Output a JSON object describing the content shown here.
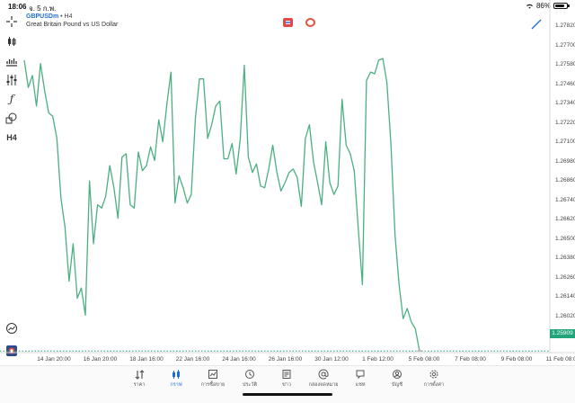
{
  "status_bar": {
    "time": "18:06",
    "date": "จ. 5 ก.พ.",
    "battery": "86%",
    "battery_level": 0.86
  },
  "header": {
    "symbol": "GBPUSDm",
    "timeframe": "H4",
    "description": "Great Britain Pound vs US Dollar"
  },
  "toolbar": {
    "items": [
      {
        "name": "crosshair-icon"
      },
      {
        "name": "candlestick-icon"
      },
      {
        "name": "indicators-icon"
      },
      {
        "name": "settings-sliders-icon"
      },
      {
        "name": "function-icon"
      },
      {
        "name": "objects-icon"
      },
      {
        "name": "timeframe-label",
        "label": "H4"
      }
    ]
  },
  "colors": {
    "line": "#4caf82",
    "accent": "#1f6fd1",
    "price_tag": "#22a57a"
  },
  "chart_data": {
    "type": "line",
    "title": "",
    "price_labels": [
      "1.27820",
      "1.27700",
      "1.27580",
      "1.27460",
      "1.27340",
      "1.27220",
      "1.27100",
      "1.26980",
      "1.26860",
      "1.26740",
      "1.26620",
      "1.26500",
      "1.26380",
      "1.26260",
      "1.26140",
      "1.26020"
    ],
    "x_labels": [
      "14 Jan 20:00",
      "16 Jan 20:00",
      "18 Jan 16:00",
      "22 Jan 16:00",
      "24 Jan 16:00",
      "26 Jan 16:00",
      "30 Jan 12:00",
      "1 Feb 12:00",
      "5 Feb 08:00",
      "7 Feb 08:00",
      "9 Feb 08:00",
      "11 Feb 08:00"
    ],
    "current_price": "1.25909",
    "current_price_value": 1.25909,
    "ylim": [
      1.259,
      1.279
    ],
    "x_range": [
      0,
      129
    ],
    "values": [
      1.2762,
      1.2746,
      1.2753,
      1.2735,
      1.276,
      1.2744,
      1.2731,
      1.2729,
      1.2716,
      1.2681,
      1.2664,
      1.2632,
      1.2654,
      1.2622,
      1.2628,
      1.2612,
      1.2691,
      1.2654,
      1.2677,
      1.2675,
      1.2682,
      1.27,
      1.2687,
      1.2669,
      1.2705,
      1.2707,
      1.2677,
      1.2675,
      1.2708,
      1.2697,
      1.27,
      1.2711,
      1.2703,
      1.2727,
      1.2714,
      1.2736,
      1.2755,
      1.2678,
      1.2694,
      1.2687,
      1.2678,
      1.2683,
      1.2728,
      1.2751,
      1.2751,
      1.2716,
      1.2724,
      1.2735,
      1.2738,
      1.2704,
      1.2704,
      1.2713,
      1.2695,
      1.2715,
      1.2759,
      1.2705,
      1.2696,
      1.2701,
      1.2688,
      1.2687,
      1.2698,
      1.2712,
      1.2696,
      1.2685,
      1.269,
      1.2696,
      1.2698,
      1.2693,
      1.2676,
      1.2716,
      1.2724,
      1.2702,
      1.269,
      1.2677,
      1.2714,
      1.269,
      1.2683,
      1.2688,
      1.2739,
      1.2712,
      1.2707,
      1.2697,
      1.2662,
      1.263,
      1.275,
      1.2755,
      1.2754,
      1.2762,
      1.2763,
      1.2749,
      1.2713,
      1.2659,
      1.263,
      1.261,
      1.2616,
      1.2608,
      1.2604,
      1.2591
    ],
    "grid": false
  },
  "bottom_nav": {
    "tabs": [
      {
        "name": "tab-quotes",
        "label": "ราคา",
        "icon": "quotes-icon"
      },
      {
        "name": "tab-chart",
        "label": "กราฟ",
        "icon": "chart-icon",
        "active": true
      },
      {
        "name": "tab-trade",
        "label": "การซื้อขาย",
        "icon": "trade-icon"
      },
      {
        "name": "tab-history",
        "label": "ประวัติ",
        "icon": "history-icon"
      },
      {
        "name": "tab-news",
        "label": "ข่าว",
        "icon": "news-icon"
      },
      {
        "name": "tab-mailbox",
        "label": "กล่องจดหมาย",
        "icon": "mailbox-icon"
      },
      {
        "name": "tab-chat",
        "label": "แชท",
        "icon": "chat-icon"
      },
      {
        "name": "tab-account",
        "label": "บัญชี",
        "icon": "account-icon"
      },
      {
        "name": "tab-settings",
        "label": "การตั้งค่า",
        "icon": "settings-icon"
      }
    ]
  }
}
